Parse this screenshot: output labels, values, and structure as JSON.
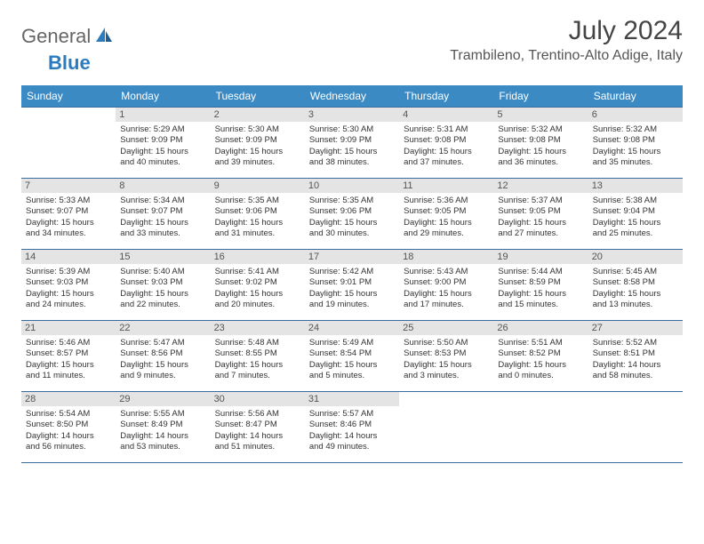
{
  "logo": {
    "text1": "General",
    "text2": "Blue"
  },
  "title": "July 2024",
  "location": "Trambileno, Trentino-Alto Adige, Italy",
  "header_bg": "#3b8ac4",
  "header_fg": "#ffffff",
  "daynum_bg": "#e4e4e4",
  "border_color": "#3b6a9e",
  "days": [
    "Sunday",
    "Monday",
    "Tuesday",
    "Wednesday",
    "Thursday",
    "Friday",
    "Saturday"
  ],
  "weeks": [
    [
      {
        "n": "",
        "sr": "",
        "ss": "",
        "d1": "",
        "d2": ""
      },
      {
        "n": "1",
        "sr": "Sunrise: 5:29 AM",
        "ss": "Sunset: 9:09 PM",
        "d1": "Daylight: 15 hours",
        "d2": "and 40 minutes."
      },
      {
        "n": "2",
        "sr": "Sunrise: 5:30 AM",
        "ss": "Sunset: 9:09 PM",
        "d1": "Daylight: 15 hours",
        "d2": "and 39 minutes."
      },
      {
        "n": "3",
        "sr": "Sunrise: 5:30 AM",
        "ss": "Sunset: 9:09 PM",
        "d1": "Daylight: 15 hours",
        "d2": "and 38 minutes."
      },
      {
        "n": "4",
        "sr": "Sunrise: 5:31 AM",
        "ss": "Sunset: 9:08 PM",
        "d1": "Daylight: 15 hours",
        "d2": "and 37 minutes."
      },
      {
        "n": "5",
        "sr": "Sunrise: 5:32 AM",
        "ss": "Sunset: 9:08 PM",
        "d1": "Daylight: 15 hours",
        "d2": "and 36 minutes."
      },
      {
        "n": "6",
        "sr": "Sunrise: 5:32 AM",
        "ss": "Sunset: 9:08 PM",
        "d1": "Daylight: 15 hours",
        "d2": "and 35 minutes."
      }
    ],
    [
      {
        "n": "7",
        "sr": "Sunrise: 5:33 AM",
        "ss": "Sunset: 9:07 PM",
        "d1": "Daylight: 15 hours",
        "d2": "and 34 minutes."
      },
      {
        "n": "8",
        "sr": "Sunrise: 5:34 AM",
        "ss": "Sunset: 9:07 PM",
        "d1": "Daylight: 15 hours",
        "d2": "and 33 minutes."
      },
      {
        "n": "9",
        "sr": "Sunrise: 5:35 AM",
        "ss": "Sunset: 9:06 PM",
        "d1": "Daylight: 15 hours",
        "d2": "and 31 minutes."
      },
      {
        "n": "10",
        "sr": "Sunrise: 5:35 AM",
        "ss": "Sunset: 9:06 PM",
        "d1": "Daylight: 15 hours",
        "d2": "and 30 minutes."
      },
      {
        "n": "11",
        "sr": "Sunrise: 5:36 AM",
        "ss": "Sunset: 9:05 PM",
        "d1": "Daylight: 15 hours",
        "d2": "and 29 minutes."
      },
      {
        "n": "12",
        "sr": "Sunrise: 5:37 AM",
        "ss": "Sunset: 9:05 PM",
        "d1": "Daylight: 15 hours",
        "d2": "and 27 minutes."
      },
      {
        "n": "13",
        "sr": "Sunrise: 5:38 AM",
        "ss": "Sunset: 9:04 PM",
        "d1": "Daylight: 15 hours",
        "d2": "and 25 minutes."
      }
    ],
    [
      {
        "n": "14",
        "sr": "Sunrise: 5:39 AM",
        "ss": "Sunset: 9:03 PM",
        "d1": "Daylight: 15 hours",
        "d2": "and 24 minutes."
      },
      {
        "n": "15",
        "sr": "Sunrise: 5:40 AM",
        "ss": "Sunset: 9:03 PM",
        "d1": "Daylight: 15 hours",
        "d2": "and 22 minutes."
      },
      {
        "n": "16",
        "sr": "Sunrise: 5:41 AM",
        "ss": "Sunset: 9:02 PM",
        "d1": "Daylight: 15 hours",
        "d2": "and 20 minutes."
      },
      {
        "n": "17",
        "sr": "Sunrise: 5:42 AM",
        "ss": "Sunset: 9:01 PM",
        "d1": "Daylight: 15 hours",
        "d2": "and 19 minutes."
      },
      {
        "n": "18",
        "sr": "Sunrise: 5:43 AM",
        "ss": "Sunset: 9:00 PM",
        "d1": "Daylight: 15 hours",
        "d2": "and 17 minutes."
      },
      {
        "n": "19",
        "sr": "Sunrise: 5:44 AM",
        "ss": "Sunset: 8:59 PM",
        "d1": "Daylight: 15 hours",
        "d2": "and 15 minutes."
      },
      {
        "n": "20",
        "sr": "Sunrise: 5:45 AM",
        "ss": "Sunset: 8:58 PM",
        "d1": "Daylight: 15 hours",
        "d2": "and 13 minutes."
      }
    ],
    [
      {
        "n": "21",
        "sr": "Sunrise: 5:46 AM",
        "ss": "Sunset: 8:57 PM",
        "d1": "Daylight: 15 hours",
        "d2": "and 11 minutes."
      },
      {
        "n": "22",
        "sr": "Sunrise: 5:47 AM",
        "ss": "Sunset: 8:56 PM",
        "d1": "Daylight: 15 hours",
        "d2": "and 9 minutes."
      },
      {
        "n": "23",
        "sr": "Sunrise: 5:48 AM",
        "ss": "Sunset: 8:55 PM",
        "d1": "Daylight: 15 hours",
        "d2": "and 7 minutes."
      },
      {
        "n": "24",
        "sr": "Sunrise: 5:49 AM",
        "ss": "Sunset: 8:54 PM",
        "d1": "Daylight: 15 hours",
        "d2": "and 5 minutes."
      },
      {
        "n": "25",
        "sr": "Sunrise: 5:50 AM",
        "ss": "Sunset: 8:53 PM",
        "d1": "Daylight: 15 hours",
        "d2": "and 3 minutes."
      },
      {
        "n": "26",
        "sr": "Sunrise: 5:51 AM",
        "ss": "Sunset: 8:52 PM",
        "d1": "Daylight: 15 hours",
        "d2": "and 0 minutes."
      },
      {
        "n": "27",
        "sr": "Sunrise: 5:52 AM",
        "ss": "Sunset: 8:51 PM",
        "d1": "Daylight: 14 hours",
        "d2": "and 58 minutes."
      }
    ],
    [
      {
        "n": "28",
        "sr": "Sunrise: 5:54 AM",
        "ss": "Sunset: 8:50 PM",
        "d1": "Daylight: 14 hours",
        "d2": "and 56 minutes."
      },
      {
        "n": "29",
        "sr": "Sunrise: 5:55 AM",
        "ss": "Sunset: 8:49 PM",
        "d1": "Daylight: 14 hours",
        "d2": "and 53 minutes."
      },
      {
        "n": "30",
        "sr": "Sunrise: 5:56 AM",
        "ss": "Sunset: 8:47 PM",
        "d1": "Daylight: 14 hours",
        "d2": "and 51 minutes."
      },
      {
        "n": "31",
        "sr": "Sunrise: 5:57 AM",
        "ss": "Sunset: 8:46 PM",
        "d1": "Daylight: 14 hours",
        "d2": "and 49 minutes."
      },
      {
        "n": "",
        "sr": "",
        "ss": "",
        "d1": "",
        "d2": ""
      },
      {
        "n": "",
        "sr": "",
        "ss": "",
        "d1": "",
        "d2": ""
      },
      {
        "n": "",
        "sr": "",
        "ss": "",
        "d1": "",
        "d2": ""
      }
    ]
  ]
}
